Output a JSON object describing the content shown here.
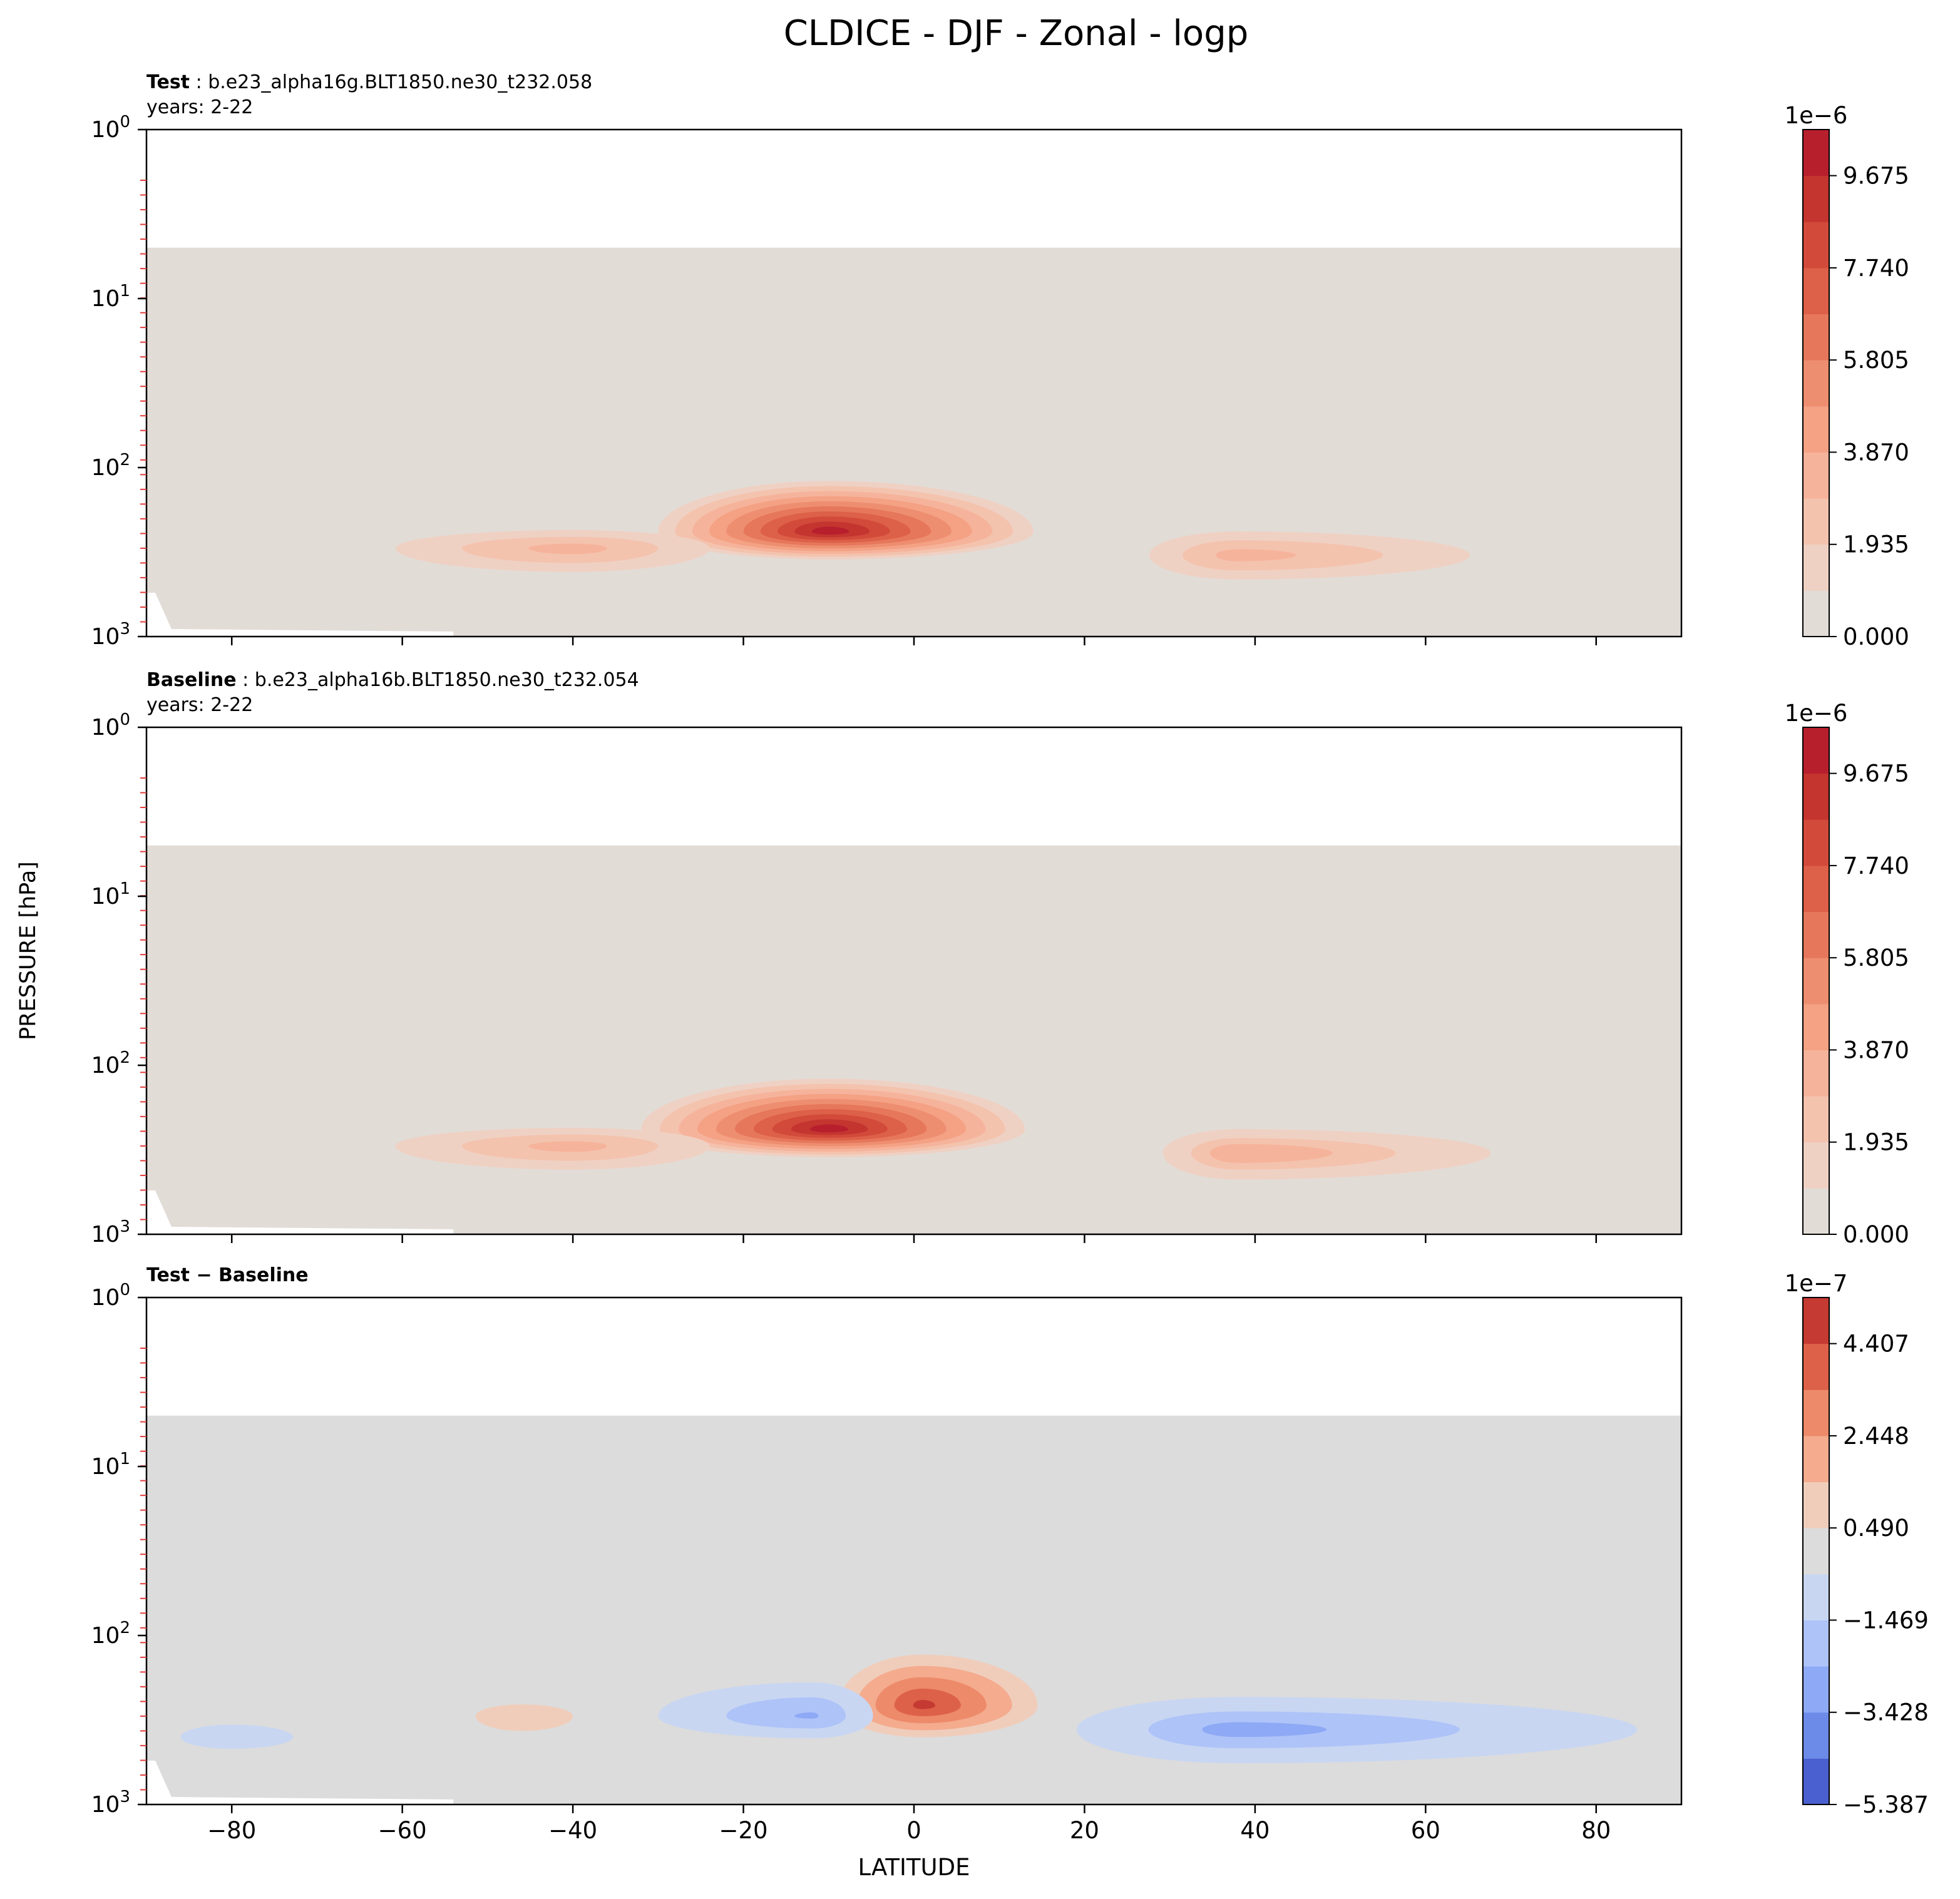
{
  "figure": {
    "title": "CLDICE - DJF - Zonal - logp",
    "ylabel": "PRESSURE [hPa]",
    "xlabel": "LATITUDE"
  },
  "chart_data": [
    {
      "type": "heatmap",
      "panel": "test",
      "title_bold": "Test",
      "title_rest": ": b.e23_alpha16g.BLT1850.ne30_t232.058",
      "subtitle": "years: 2-22",
      "x_range": [
        -90,
        90
      ],
      "y_range_hpa": [
        1000,
        1
      ],
      "y_scale": "log",
      "x_ticks": [
        -80,
        -60,
        -40,
        -20,
        0,
        20,
        40,
        60,
        80
      ],
      "y_ticks": [
        {
          "base": "10",
          "exp": "0",
          "value": 1
        },
        {
          "base": "10",
          "exp": "1",
          "value": 10
        },
        {
          "base": "10",
          "exp": "2",
          "value": 100
        },
        {
          "base": "10",
          "exp": "3",
          "value": 1000
        }
      ],
      "data_top_hpa": 5,
      "colorbar": {
        "multiplier": "1e−6",
        "tick_labels": [
          "9.675",
          "7.740",
          "5.805",
          "3.870",
          "1.935",
          "0.000"
        ],
        "tick_values": [
          9.675,
          7.74,
          5.805,
          3.87,
          1.935,
          0.0
        ],
        "range": [
          0.0,
          10.6425
        ],
        "levels": 11,
        "colors": [
          "#e2dcd7",
          "#efd1c4",
          "#f4c3ae",
          "#f6b39b",
          "#f4a184",
          "#ee8e70",
          "#e6775b",
          "#dd6048",
          "#d24a3a",
          "#c43530",
          "#b81f2d"
        ]
      },
      "features": [
        {
          "label": "tropical maximum",
          "lat_range": [
            -30,
            14
          ],
          "p_range_hpa": [
            120,
            350
          ],
          "peak_lat": -10,
          "peak_hpa": 240,
          "peak": 10.3
        },
        {
          "label": "southern subtropical layer",
          "lat_range": [
            -66,
            -20
          ],
          "p_range_hpa": [
            220,
            450
          ],
          "peak_lat": -40,
          "peak_hpa": 300,
          "peak": 3.5
        },
        {
          "label": "northern mid-latitude layer",
          "lat_range": [
            25,
            72
          ],
          "p_range_hpa": [
            220,
            500
          ],
          "peak_lat": 38,
          "peak_hpa": 330,
          "peak": 3.6
        }
      ]
    },
    {
      "type": "heatmap",
      "panel": "baseline",
      "title_bold": "Baseline",
      "title_rest": ": b.e23_alpha16b.BLT1850.ne30_t232.054",
      "subtitle": "years: 2-22",
      "x_range": [
        -90,
        90
      ],
      "y_range_hpa": [
        1000,
        1
      ],
      "y_scale": "log",
      "x_ticks": [
        -80,
        -60,
        -40,
        -20,
        0,
        20,
        40,
        60,
        80
      ],
      "y_ticks": [
        {
          "base": "10",
          "exp": "0",
          "value": 1
        },
        {
          "base": "10",
          "exp": "1",
          "value": 10
        },
        {
          "base": "10",
          "exp": "2",
          "value": 100
        },
        {
          "base": "10",
          "exp": "3",
          "value": 1000
        }
      ],
      "data_top_hpa": 5,
      "colorbar": {
        "multiplier": "1e−6",
        "tick_labels": [
          "9.675",
          "7.740",
          "5.805",
          "3.870",
          "1.935",
          "0.000"
        ],
        "tick_values": [
          9.675,
          7.74,
          5.805,
          3.87,
          1.935,
          0.0
        ],
        "range": [
          0.0,
          10.6425
        ],
        "levels": 11,
        "colors": [
          "#e2dcd7",
          "#efd1c4",
          "#f4c3ae",
          "#f6b39b",
          "#f4a184",
          "#ee8e70",
          "#e6775b",
          "#dd6048",
          "#d24a3a",
          "#c43530",
          "#b81f2d"
        ]
      },
      "features": [
        {
          "label": "tropical maximum",
          "lat_range": [
            -32,
            13
          ],
          "p_range_hpa": [
            120,
            350
          ],
          "peak_lat": -10,
          "peak_hpa": 240,
          "peak": 10.2
        },
        {
          "label": "southern subtropical layer",
          "lat_range": [
            -66,
            -20
          ],
          "p_range_hpa": [
            220,
            450
          ],
          "peak_lat": -40,
          "peak_hpa": 300,
          "peak": 3.4
        },
        {
          "label": "northern mid-latitude layer",
          "lat_range": [
            27,
            75
          ],
          "p_range_hpa": [
            220,
            520
          ],
          "peak_lat": 38,
          "peak_hpa": 330,
          "peak": 3.8
        }
      ]
    },
    {
      "type": "heatmap",
      "panel": "difference",
      "title_bold": "Test − Baseline",
      "title_rest": "",
      "subtitle": "",
      "x_range": [
        -90,
        90
      ],
      "y_range_hpa": [
        1000,
        1
      ],
      "y_scale": "log",
      "x_ticks": [
        -80,
        -60,
        -40,
        -20,
        0,
        20,
        40,
        60,
        80
      ],
      "y_ticks": [
        {
          "base": "10",
          "exp": "0",
          "value": 1
        },
        {
          "base": "10",
          "exp": "1",
          "value": 10
        },
        {
          "base": "10",
          "exp": "2",
          "value": 100
        },
        {
          "base": "10",
          "exp": "3",
          "value": 1000
        }
      ],
      "data_top_hpa": 5,
      "colorbar": {
        "multiplier": "1e−7",
        "tick_labels": [
          "4.407",
          "2.448",
          "0.490",
          "−1.469",
          "−3.428",
          "−5.387"
        ],
        "tick_values": [
          4.407,
          2.448,
          0.49,
          -1.469,
          -3.428,
          -5.387
        ],
        "range": [
          -5.387,
          5.387
        ],
        "levels": 11,
        "colors": [
          "#4a60d0",
          "#6c8ae8",
          "#8ea9f5",
          "#aec3f8",
          "#c8d6f2",
          "#dcdcdc",
          "#f0cdbb",
          "#f4ab8e",
          "#ed8a69",
          "#dd6149",
          "#c53a32"
        ]
      },
      "features": [
        {
          "label": "equatorial positive difference",
          "lat_range": [
            -10,
            16
          ],
          "p_range_hpa": [
            120,
            420
          ],
          "peak_lat": 1,
          "peak_hpa": 260,
          "peak": 4.8
        },
        {
          "label": "southern positive band",
          "lat_range": [
            -55,
            -36
          ],
          "p_range_hpa": [
            230,
            420
          ],
          "peak_lat": -46,
          "peak_hpa": 300,
          "peak": 1.2
        },
        {
          "label": "southern tropical negative band",
          "lat_range": [
            -32,
            -4
          ],
          "p_range_hpa": [
            180,
            420
          ],
          "peak_lat": -12,
          "peak_hpa": 300,
          "peak": -2.6
        },
        {
          "label": "northern negative band",
          "lat_range": [
            17,
            90
          ],
          "p_range_hpa": [
            220,
            600
          ],
          "peak_lat": 38,
          "peak_hpa": 360,
          "peak": -2.8
        },
        {
          "label": "southern high-latitude negative band",
          "lat_range": [
            -90,
            -68
          ],
          "p_range_hpa": [
            300,
            520
          ],
          "peak_lat": -80,
          "peak_hpa": 400,
          "peak": -1.0
        }
      ]
    }
  ]
}
